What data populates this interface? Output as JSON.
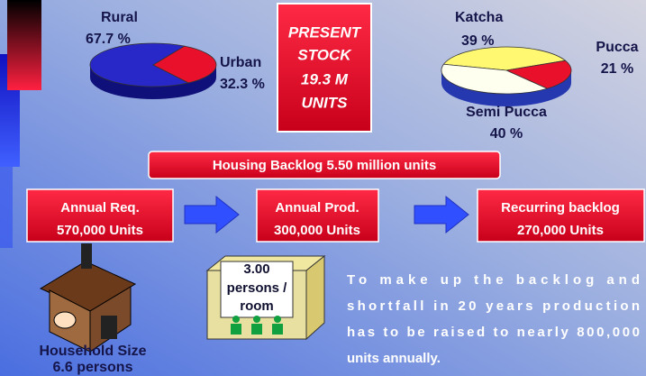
{
  "rural_urban_pie": {
    "type": "pie",
    "labels": [
      "Rural",
      "Urban"
    ],
    "values": [
      67.7,
      32.3
    ],
    "value_labels": [
      "67.7 %",
      "32.3 %"
    ],
    "colors": [
      "#2828c8",
      "#e8102a"
    ]
  },
  "present_stock": {
    "lines": [
      "PRESENT",
      "STOCK",
      "19.3 M",
      "UNITS"
    ]
  },
  "housing_type_pie": {
    "type": "pie",
    "labels": [
      "Katcha",
      "Pucca",
      "Semi Pucca"
    ],
    "values": [
      39,
      21,
      40
    ],
    "value_labels": [
      "39 %",
      "21 %",
      "40 %"
    ],
    "colors": [
      "#fff870",
      "#e8102a",
      "#fffff0"
    ]
  },
  "backlog_banner": "Housing Backlog 5.50 million units",
  "flow": [
    {
      "title": "Annual Req.",
      "value": "570,000 Units"
    },
    {
      "title": "Annual Prod.",
      "value": "300,000 Units"
    },
    {
      "title": "Recurring backlog",
      "value": "270,000 Units"
    }
  ],
  "occupancy": {
    "lines": [
      "3.00",
      "persons /",
      "room"
    ]
  },
  "household": {
    "lines": [
      "Household Size",
      "6.6 persons"
    ]
  },
  "note": {
    "lines": [
      "To make up the backlog and",
      "shortfall in 20 years production",
      "has to be raised to nearly 800,000",
      "units annually."
    ]
  }
}
